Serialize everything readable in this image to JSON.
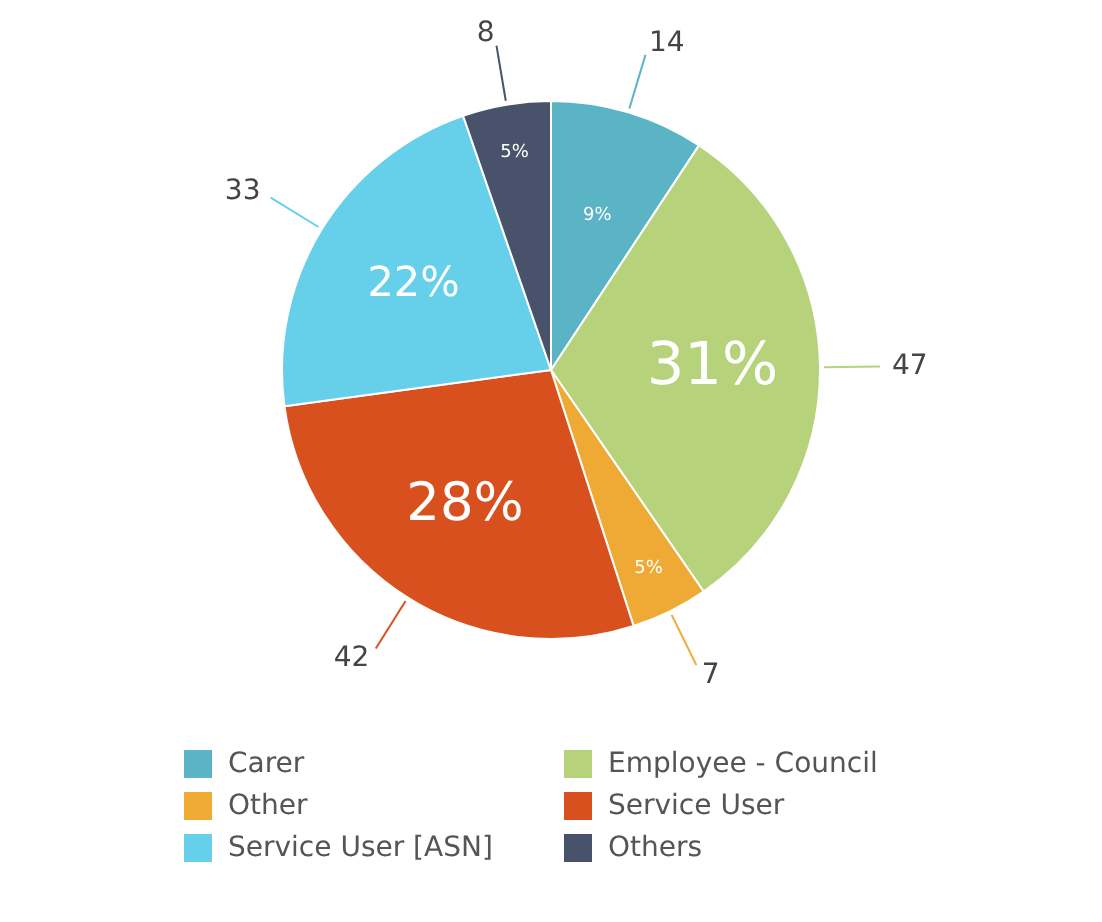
{
  "chart_data": {
    "type": "pie",
    "categories": [
      "Carer",
      "Employee - Council",
      "Other",
      "Service User",
      "Service User [ASN]",
      "Others"
    ],
    "values": [
      14,
      47,
      7,
      42,
      33,
      8
    ],
    "colors": [
      "#5ab4c6",
      "#b6d37c",
      "#eeaa35",
      "#d9501f",
      "#66cfe9",
      "#48526a"
    ],
    "annotations": [
      {
        "text": "9%",
        "x": "Carer"
      },
      {
        "text": "31%",
        "x": "Employee - Council"
      },
      {
        "text": "5%",
        "x": "Other"
      },
      {
        "text": "28%",
        "x": "Service User"
      },
      {
        "text": "22%",
        "x": "Service User [ASN]"
      },
      {
        "text": "5%",
        "x": "Others"
      }
    ],
    "data_labels": true,
    "legend": "bottom"
  }
}
